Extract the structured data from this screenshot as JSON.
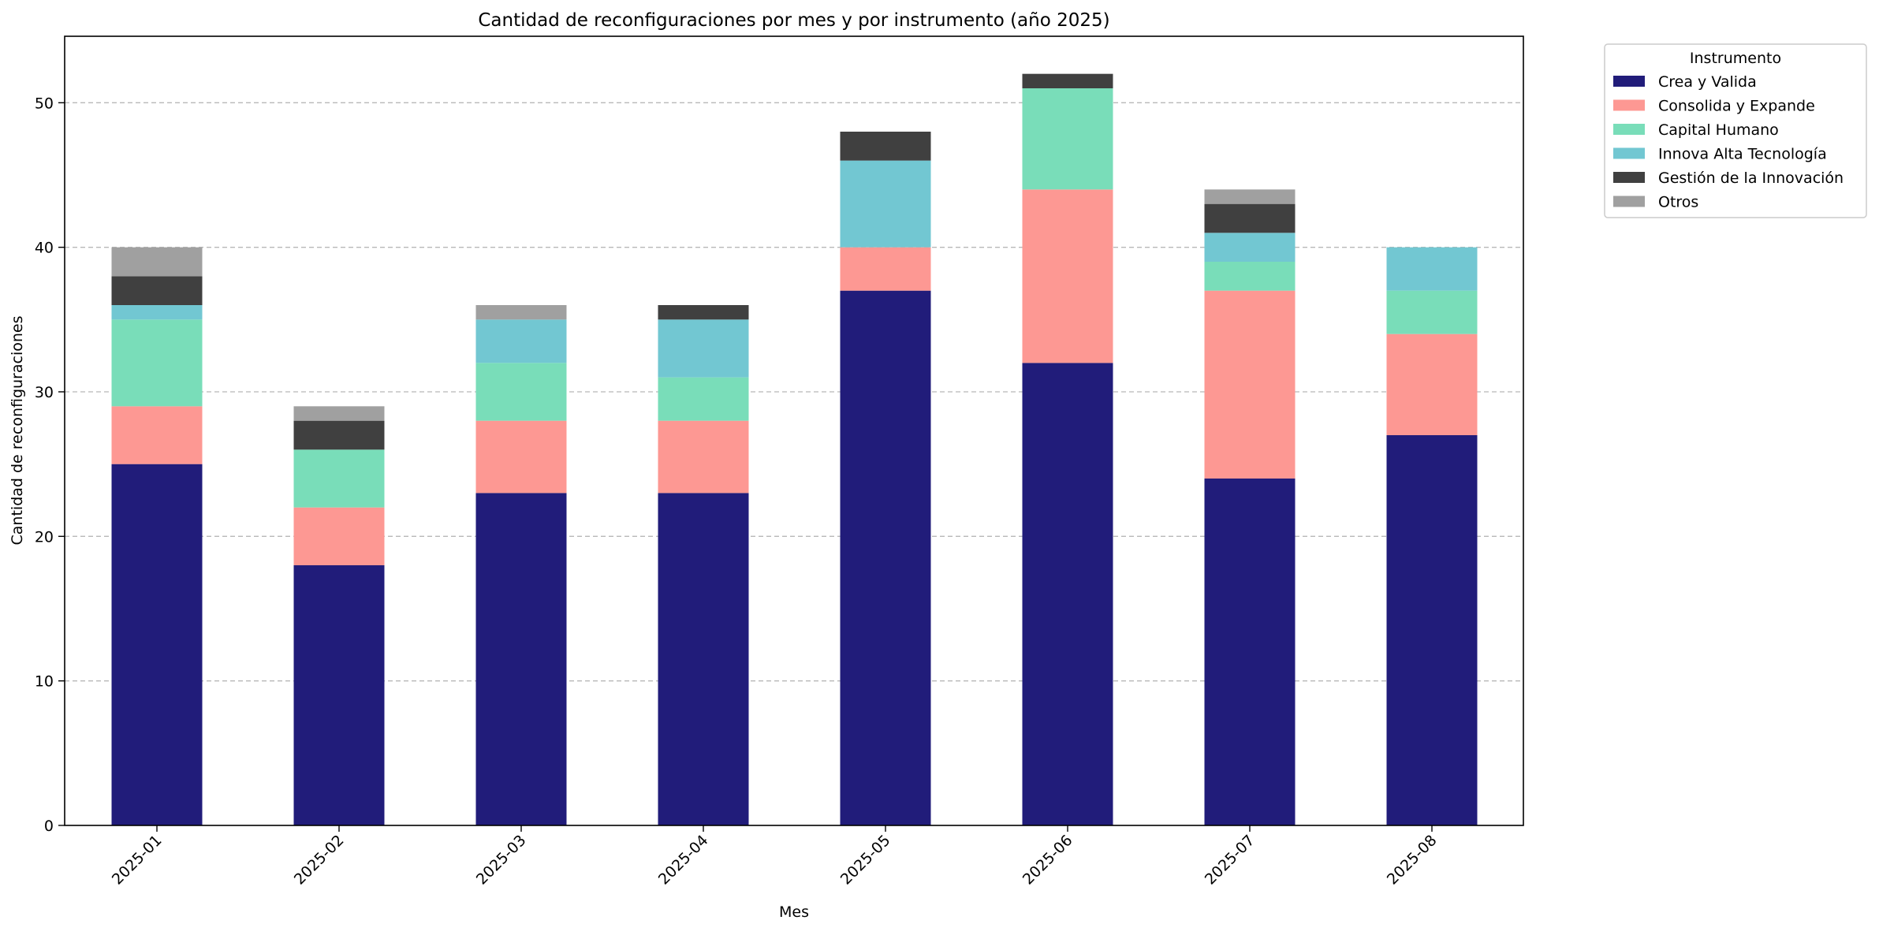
{
  "chart_data": {
    "type": "bar",
    "stacked": true,
    "title": "Cantidad de reconfiguraciones por mes y por instrumento (año 2025)",
    "xlabel": "Mes",
    "ylabel": "Cantidad de reconfiguraciones",
    "ylim": [
      0,
      54.6
    ],
    "yticks": [
      0,
      10,
      20,
      30,
      40,
      50
    ],
    "grid": "y-dashed",
    "legend_title": "Instrumento",
    "legend_position": "outside-top-right",
    "categories": [
      "2025-01",
      "2025-02",
      "2025-03",
      "2025-04",
      "2025-05",
      "2025-06",
      "2025-07",
      "2025-08"
    ],
    "series": [
      {
        "name": "Crea y Valida",
        "color": "#211c7a",
        "values": [
          25,
          18,
          23,
          23,
          37,
          32,
          24,
          27
        ]
      },
      {
        "name": "Consolida y Expande",
        "color": "#fd9893",
        "values": [
          4,
          4,
          5,
          5,
          3,
          12,
          13,
          7
        ]
      },
      {
        "name": "Capital Humano",
        "color": "#79ddb9",
        "values": [
          6,
          4,
          4,
          3,
          0,
          7,
          2,
          3
        ]
      },
      {
        "name": "Innova Alta Tecnología",
        "color": "#72c7d2",
        "values": [
          1,
          0,
          3,
          4,
          6,
          0,
          2,
          3
        ]
      },
      {
        "name": "Gestión de la Innovación",
        "color": "#404040",
        "values": [
          2,
          2,
          0,
          1,
          2,
          1,
          2,
          0
        ]
      },
      {
        "name": "Otros",
        "color": "#a0a0a0",
        "values": [
          2,
          1,
          1,
          0,
          0,
          0,
          1,
          0
        ]
      }
    ]
  }
}
